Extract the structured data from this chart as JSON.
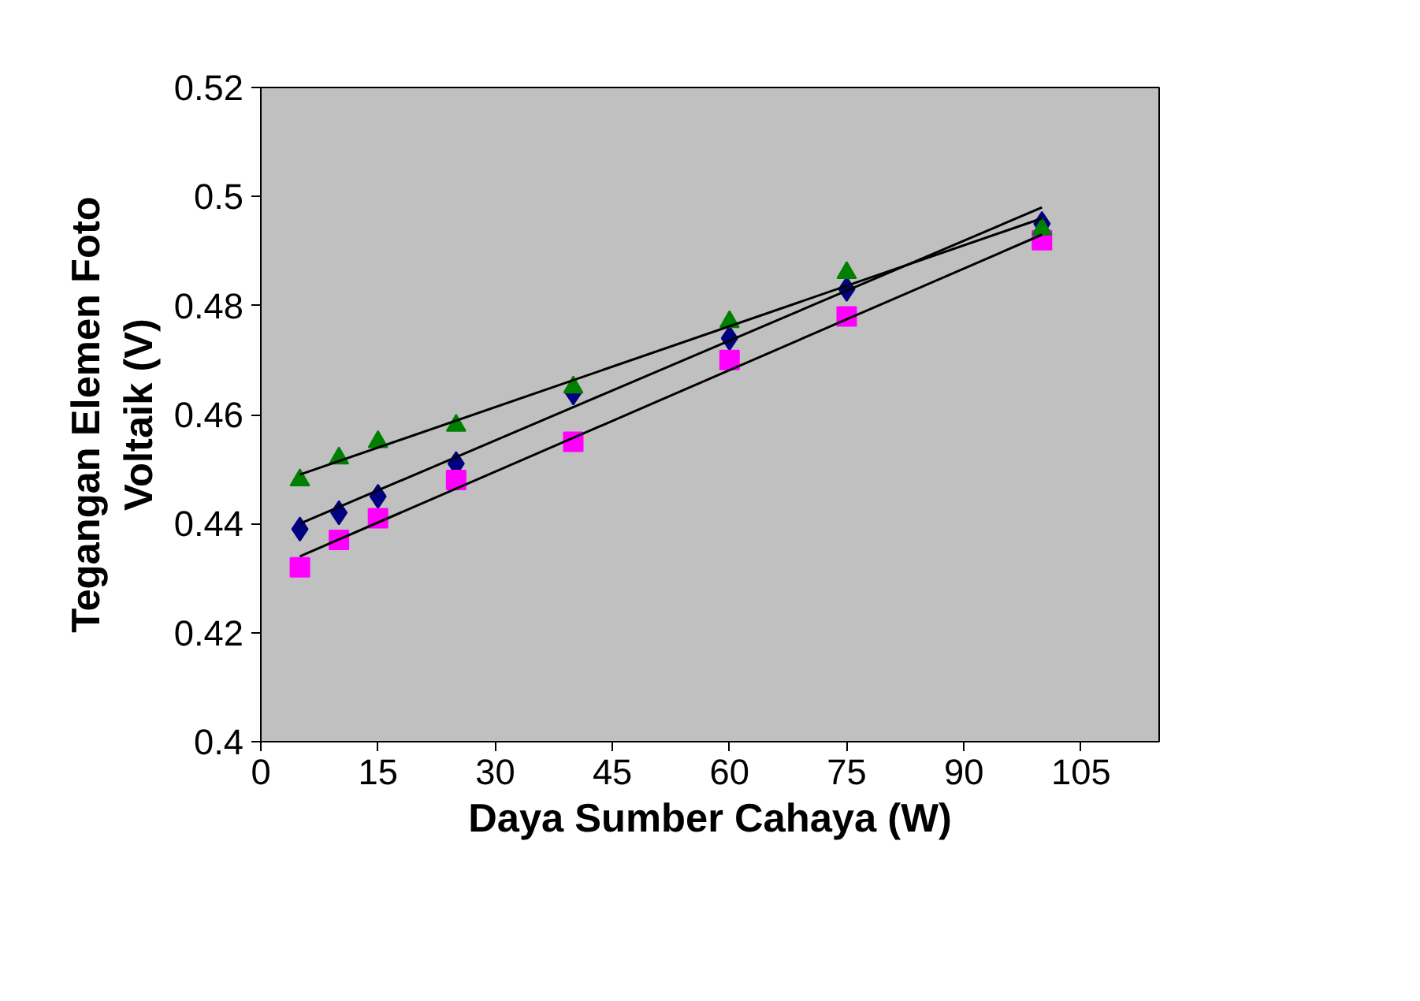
{
  "chart_data": {
    "type": "scatter",
    "xlabel": "Daya Sumber Cahaya (W)",
    "ylabel": "Tegangan Elemen Foto\nVoltaik (V)",
    "xlim": [
      0,
      115
    ],
    "xticks": [
      0,
      15,
      30,
      45,
      60,
      75,
      90,
      105
    ],
    "ylim": [
      0.4,
      0.52
    ],
    "yticks": [
      0.4,
      0.42,
      0.44,
      0.46,
      0.48,
      0.5,
      0.52
    ],
    "grid": false,
    "series": [
      {
        "marker": "diamond",
        "color": "#000080",
        "x": [
          5,
          10,
          15,
          25,
          40,
          60,
          75,
          100
        ],
        "values": [
          0.439,
          0.442,
          0.445,
          0.451,
          0.464,
          0.474,
          0.483,
          0.495
        ]
      },
      {
        "marker": "square",
        "color": "#ff00ff",
        "x": [
          5,
          10,
          15,
          25,
          40,
          60,
          75,
          100
        ],
        "values": [
          0.432,
          0.437,
          0.441,
          0.448,
          0.455,
          0.47,
          0.478,
          0.492
        ]
      },
      {
        "marker": "triangle",
        "color": "#008000",
        "x": [
          5,
          10,
          15,
          25,
          40,
          60,
          75,
          100
        ],
        "values": [
          0.448,
          0.452,
          0.455,
          0.458,
          0.465,
          0.477,
          0.486,
          0.494
        ]
      },
      {
        "type": "line",
        "color": "#000000",
        "x": [
          5,
          100
        ],
        "values": [
          0.44,
          0.498
        ]
      },
      {
        "type": "line",
        "color": "#000000",
        "x": [
          5,
          100
        ],
        "values": [
          0.434,
          0.493
        ]
      },
      {
        "type": "line",
        "color": "#000000",
        "x": [
          5,
          100
        ],
        "values": [
          0.449,
          0.496
        ]
      }
    ]
  }
}
